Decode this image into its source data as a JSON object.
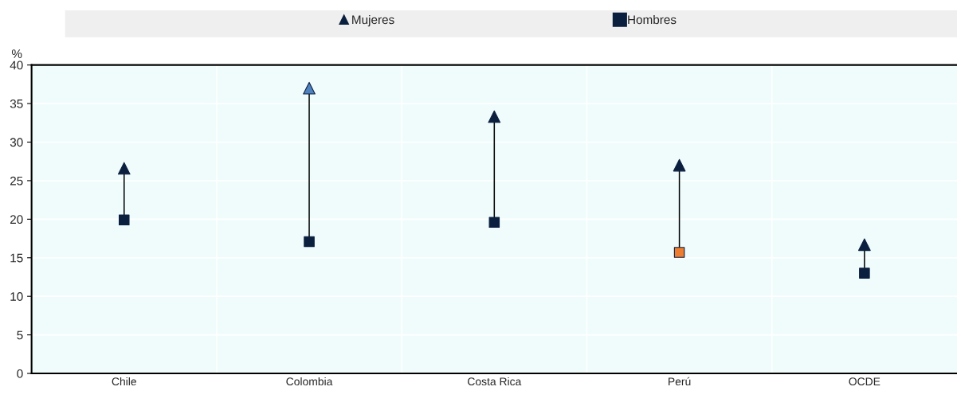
{
  "chart_data": {
    "type": "scatter",
    "ylabel": "%",
    "categories": [
      "Chile",
      "Colombia",
      "Costa Rica",
      "Perú",
      "OCDE"
    ],
    "series": [
      {
        "name": "Mujeres",
        "marker": "triangle",
        "colors": [
          "#0b1f3f",
          "#4f81bd",
          "#0b1f3f",
          "#0b1f3f",
          "#0b1f3f"
        ],
        "values": [
          26.6,
          37.0,
          33.3,
          27.0,
          16.7
        ]
      },
      {
        "name": "Hombres",
        "marker": "square",
        "colors": [
          "#0b1f3f",
          "#0b1f3f",
          "#0b1f3f",
          "#ed7d31",
          "#0b1f3f"
        ],
        "values": [
          19.9,
          17.1,
          19.6,
          15.7,
          13.0
        ]
      }
    ],
    "ylim": [
      0,
      40
    ],
    "yticks": [
      0,
      5,
      10,
      15,
      20,
      25,
      30,
      35,
      40
    ],
    "grid": true,
    "legend": "top"
  }
}
